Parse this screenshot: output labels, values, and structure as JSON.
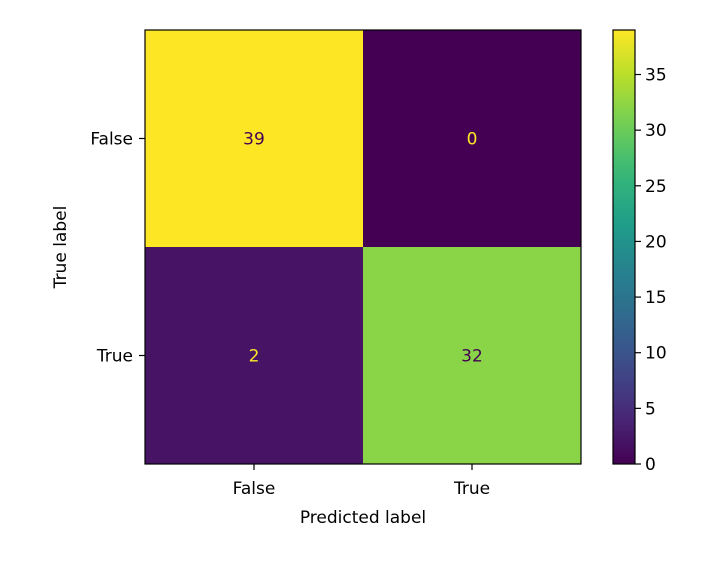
{
  "chart_data": {
    "type": "heatmap",
    "title": "",
    "xlabel": "Predicted label",
    "ylabel": "True label",
    "x_categories": [
      "False",
      "True"
    ],
    "y_categories": [
      "False",
      "True"
    ],
    "matrix": [
      [
        39,
        0
      ],
      [
        2,
        32
      ]
    ],
    "colormap": "viridis",
    "colorbar": {
      "min": 0,
      "max": 39,
      "ticks": [
        0,
        5,
        10,
        15,
        20,
        25,
        30,
        35
      ]
    },
    "text_color_on_dark": "#fde725",
    "text_color_on_light": "#440154",
    "grid": false
  }
}
